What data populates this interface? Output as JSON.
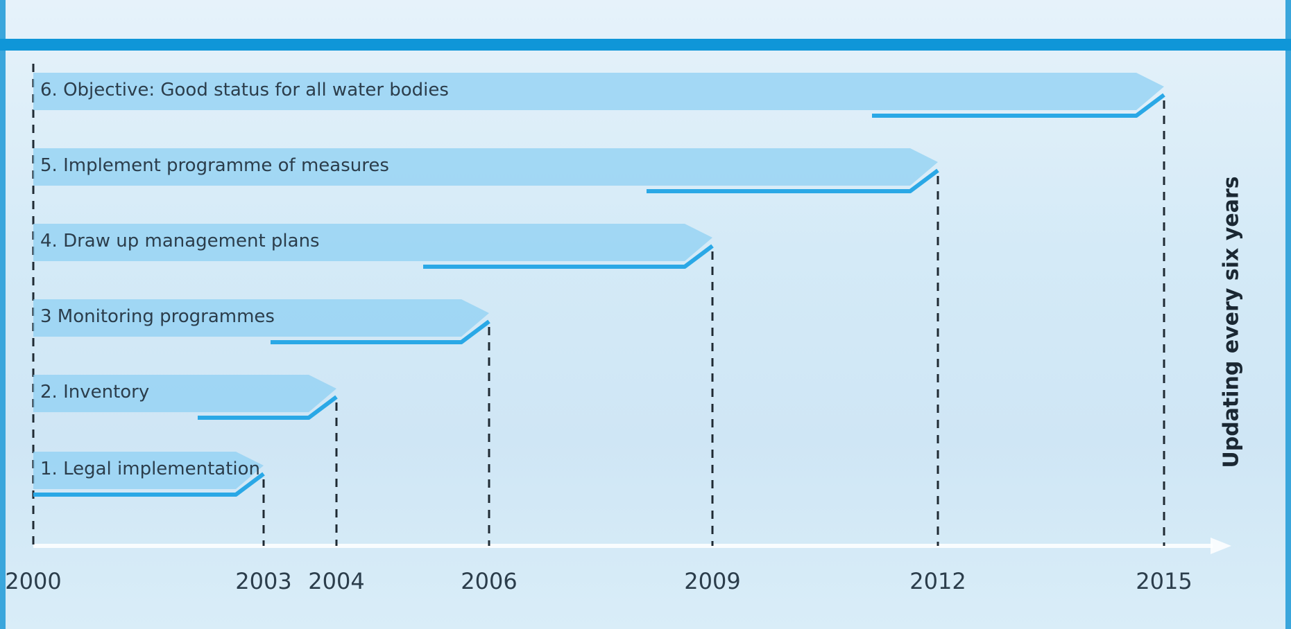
{
  "timeline": {
    "years": [
      "2000",
      "2003",
      "2004",
      "2006",
      "2009",
      "2012",
      "2015"
    ],
    "side_label": "Updating every six years",
    "steps": [
      {
        "label": "1. Legal implementation",
        "start": "2000",
        "end": "2003"
      },
      {
        "label": "2. Inventory",
        "start": "2000",
        "end": "2004"
      },
      {
        "label": "3  Monitoring programmes",
        "start": "2000",
        "end": "2006"
      },
      {
        "label": "4. Draw up management plans",
        "start": "2000",
        "end": "2009"
      },
      {
        "label": "5. Implement programme of measures",
        "start": "2000",
        "end": "2012"
      },
      {
        "label": "6. Objective: Good status for all water bodies",
        "start": "2000",
        "end": "2015"
      }
    ]
  },
  "colors": {
    "band": "#8fd0f3",
    "accent_line": "#2aa8e6",
    "top_bar": "#0f96d8",
    "dashed": "#1f2a33",
    "text": "#2b3d4b"
  }
}
